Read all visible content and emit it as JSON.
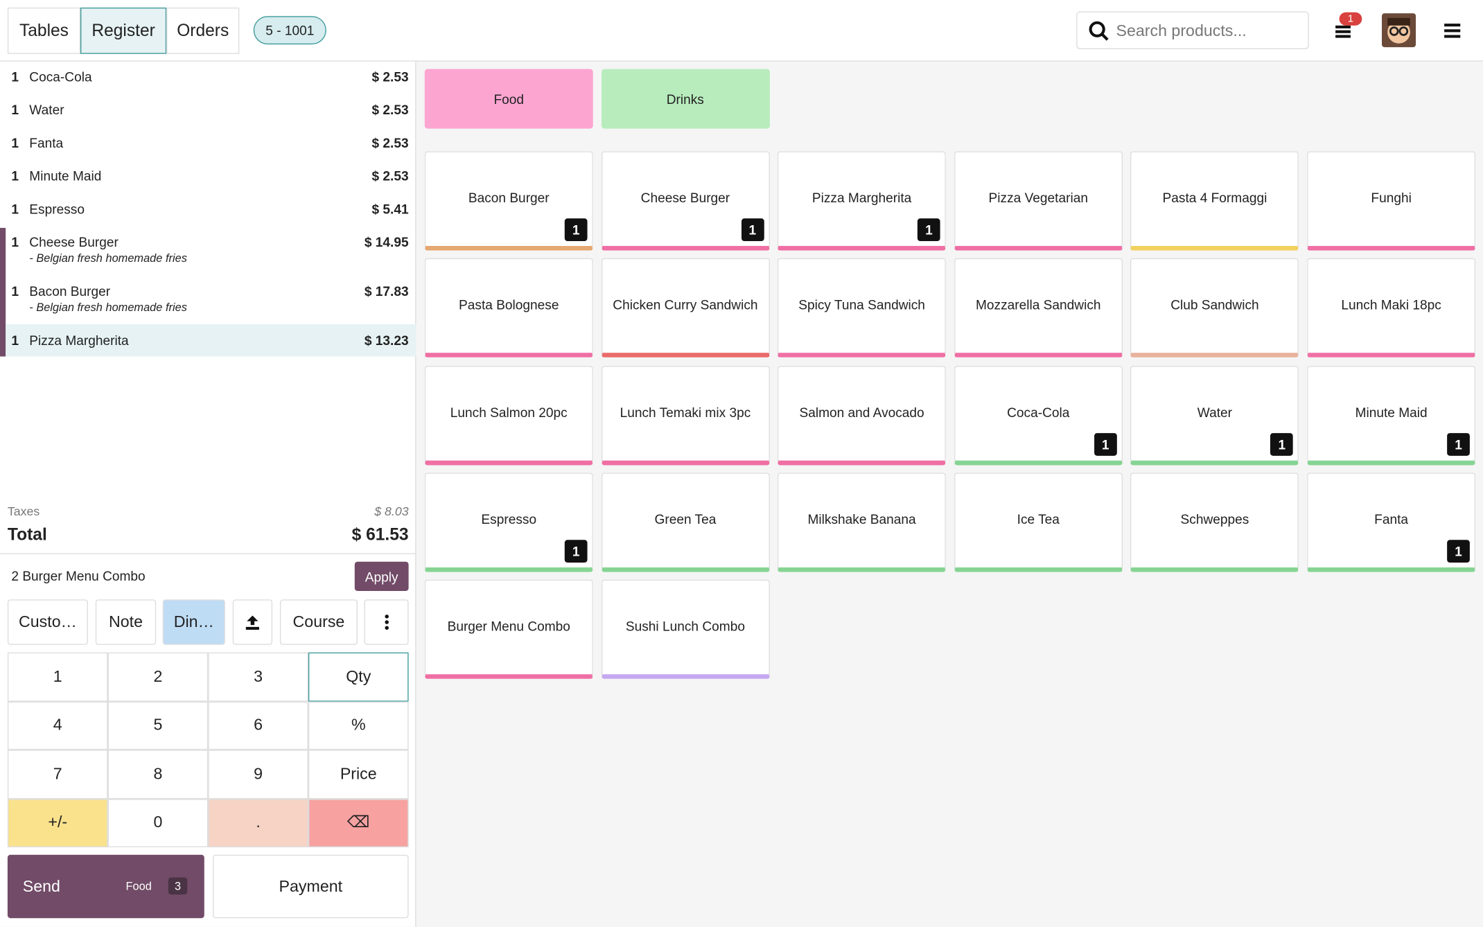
{
  "header": {
    "tabs": [
      "Tables",
      "Register",
      "Orders"
    ],
    "active_tab": 1,
    "order_ref": "5 - 1001",
    "search_placeholder": "Search products...",
    "notification_count": "1"
  },
  "order": {
    "selected": 7,
    "lines": [
      {
        "qty": "1",
        "name": "Coca-Cola",
        "price": "$ 2.53"
      },
      {
        "qty": "1",
        "name": "Water",
        "price": "$ 2.53"
      },
      {
        "qty": "1",
        "name": "Fanta",
        "price": "$ 2.53"
      },
      {
        "qty": "1",
        "name": "Minute Maid",
        "price": "$ 2.53"
      },
      {
        "qty": "1",
        "name": "Espresso",
        "price": "$ 5.41"
      },
      {
        "qty": "1",
        "name": "Cheese Burger",
        "price": "$ 14.95",
        "note": "- Belgian fresh homemade fries"
      },
      {
        "qty": "1",
        "name": "Bacon Burger",
        "price": "$ 17.83",
        "note": "- Belgian fresh homemade fries"
      },
      {
        "qty": "1",
        "name": "Pizza Margherita",
        "price": "$ 13.23"
      }
    ]
  },
  "summary": {
    "taxes_label": "Taxes",
    "taxes": "$ 8.03",
    "total_label": "Total",
    "total": "$ 61.53"
  },
  "promo": {
    "text": "2 Burger Menu Combo",
    "button": "Apply"
  },
  "actions": [
    "Custo…",
    "Note",
    "Din…",
    "Course"
  ],
  "numpad": [
    [
      "1",
      "2",
      "3",
      "Qty"
    ],
    [
      "4",
      "5",
      "6",
      "%"
    ],
    [
      "7",
      "8",
      "9",
      "Price"
    ],
    [
      "+/-",
      "0",
      ".",
      "⌫"
    ]
  ],
  "send": {
    "label": "Send",
    "category": "Food",
    "count": "3"
  },
  "payment": "Payment",
  "categories": [
    {
      "name": "Food",
      "color": "#fca5d1"
    },
    {
      "name": "Drinks",
      "color": "#b8ecbd"
    }
  ],
  "products": [
    {
      "name": "Bacon Burger",
      "qty": "1",
      "color": "#e6a872"
    },
    {
      "name": "Cheese Burger",
      "qty": "1",
      "color": "#ef6fa4"
    },
    {
      "name": "Pizza Margherita",
      "qty": "1",
      "color": "#ef6fa4"
    },
    {
      "name": "Pizza Vegetarian",
      "color": "#ef6fa4"
    },
    {
      "name": "Pasta 4 Formaggi",
      "color": "#f2d15e"
    },
    {
      "name": "Funghi",
      "color": "#ef6fa4"
    },
    {
      "name": "Pasta Bolognese",
      "color": "#ef6fa4"
    },
    {
      "name": "Chicken Curry Sandwich",
      "color": "#ea6a6a"
    },
    {
      "name": "Spicy Tuna Sandwich",
      "color": "#ef6fa4"
    },
    {
      "name": "Mozzarella Sandwich",
      "color": "#ef6fa4"
    },
    {
      "name": "Club Sandwich",
      "color": "#e8b29c"
    },
    {
      "name": "Lunch Maki 18pc",
      "color": "#ef6fa4"
    },
    {
      "name": "Lunch Salmon 20pc",
      "color": "#ef6fa4"
    },
    {
      "name": "Lunch Temaki mix 3pc",
      "color": "#ef6fa4"
    },
    {
      "name": "Salmon and Avocado",
      "color": "#ef6fa4"
    },
    {
      "name": "Coca-Cola",
      "qty": "1",
      "color": "#86d493"
    },
    {
      "name": "Water",
      "qty": "1",
      "color": "#86d493"
    },
    {
      "name": "Minute Maid",
      "qty": "1",
      "color": "#86d493"
    },
    {
      "name": "Espresso",
      "qty": "1",
      "color": "#86d493"
    },
    {
      "name": "Green Tea",
      "color": "#86d493"
    },
    {
      "name": "Milkshake Banana",
      "color": "#86d493"
    },
    {
      "name": "Ice Tea",
      "color": "#86d493"
    },
    {
      "name": "Schweppes",
      "color": "#86d493"
    },
    {
      "name": "Fanta",
      "qty": "1",
      "color": "#86d493"
    },
    {
      "name": "Burger Menu Combo",
      "color": "#ef6fa4"
    },
    {
      "name": "Sushi Lunch Combo",
      "color": "#c6a8f0"
    }
  ]
}
